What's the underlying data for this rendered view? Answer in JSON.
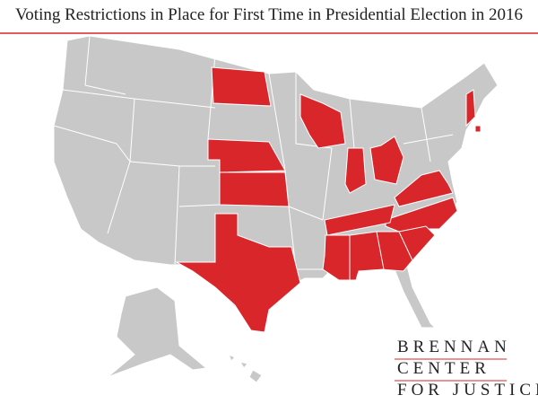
{
  "title": "Voting Restrictions in Place for First Time in Presidential Election in 2016",
  "highlight_color": "#d9262a",
  "logo": {
    "lines": [
      "BRENNAN",
      "CENTER",
      "FOR JUSTICE"
    ]
  }
}
